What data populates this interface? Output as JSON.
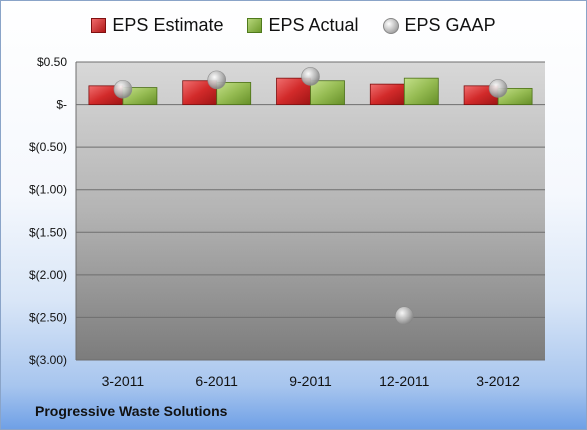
{
  "chart_data": {
    "type": "bar",
    "categories": [
      "3-2011",
      "6-2011",
      "9-2011",
      "12-2011",
      "3-2012"
    ],
    "series": [
      {
        "name": "EPS Estimate",
        "values": [
          0.22,
          0.28,
          0.31,
          0.24,
          0.22
        ],
        "color": "#c62828"
      },
      {
        "name": "EPS Actual",
        "values": [
          0.2,
          0.26,
          0.28,
          0.31,
          0.19
        ],
        "color": "#8db04a"
      },
      {
        "name": "EPS GAAP",
        "values": [
          0.18,
          0.29,
          0.33,
          -2.48,
          0.19
        ],
        "color": "#b0b0b0",
        "marker": "sphere"
      }
    ],
    "yticks": [
      0.5,
      0,
      -0.5,
      -1.0,
      -1.5,
      -2.0,
      -2.5,
      -3.0
    ],
    "ytick_labels": [
      "$0.50",
      "$-",
      "$(0.50)",
      "$(1.00)",
      "$(1.50)",
      "$(2.00)",
      "$(2.50)",
      "$(3.00)"
    ],
    "ylim": [
      -3.0,
      0.5
    ],
    "grid": true,
    "legend_position": "top"
  },
  "footer": {
    "company": "Progressive Waste Solutions"
  }
}
